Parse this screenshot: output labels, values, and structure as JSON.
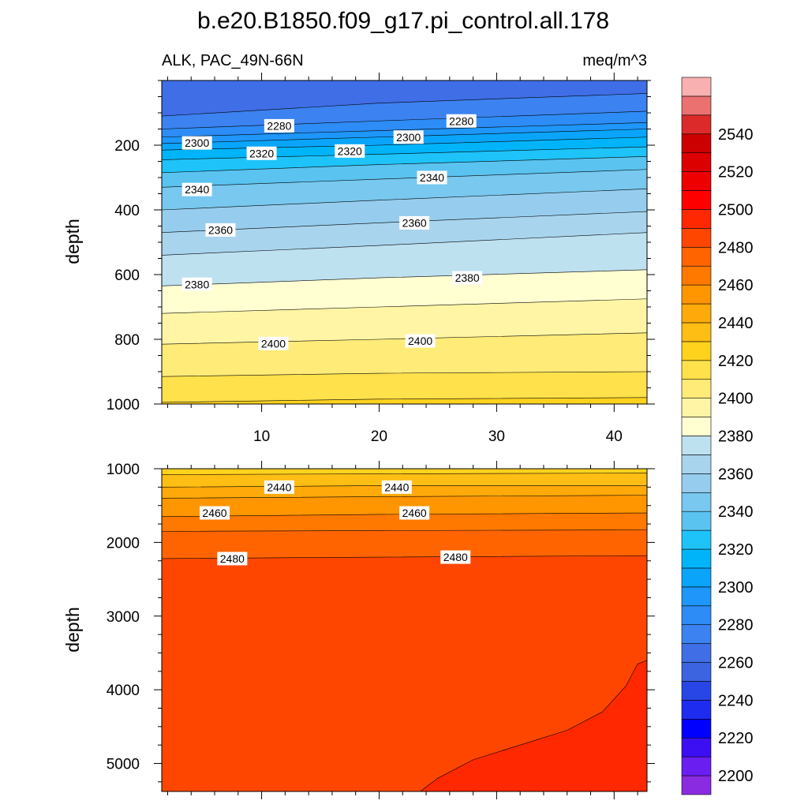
{
  "chart_data": {
    "type": "contour",
    "title": "b.e20.B1850.f09_g17.pi_control.all.178",
    "subtitle_left": "ALK, PAC_49N-66N",
    "subtitle_right": "meq/m^3",
    "ylabel": "depth",
    "xlim": [
      1.5,
      42.8
    ],
    "x_ticks": [
      10,
      20,
      30,
      40
    ],
    "panels": [
      {
        "name": "upper",
        "ylim": [
          0,
          1000
        ],
        "y_ticks": [
          200,
          400,
          600,
          800,
          1000
        ],
        "contour_depths": [
          {
            "level": 2270,
            "x": [
              1.5,
              20,
              42.8
            ],
            "depth": [
              110,
              70,
              40
            ]
          },
          {
            "level": 2280,
            "x": [
              1.5,
              20,
              42.8
            ],
            "depth": [
              150,
              125,
              95
            ]
          },
          {
            "level": 2290,
            "x": [
              1.5,
              20,
              42.8
            ],
            "depth": [
              175,
              155,
              130
            ]
          },
          {
            "level": 2300,
            "x": [
              1.5,
              20,
              42.8
            ],
            "depth": [
              195,
              175,
              150
            ]
          },
          {
            "level": 2310,
            "x": [
              1.5,
              20,
              42.8
            ],
            "depth": [
              215,
              200,
              175
            ]
          },
          {
            "level": 2320,
            "x": [
              1.5,
              20,
              42.8
            ],
            "depth": [
              245,
              228,
              205
            ]
          },
          {
            "level": 2330,
            "x": [
              1.5,
              20,
              42.8
            ],
            "depth": [
              285,
              260,
              235
            ]
          },
          {
            "level": 2340,
            "x": [
              1.5,
              20,
              42.8
            ],
            "depth": [
              330,
              305,
              275
            ]
          },
          {
            "level": 2350,
            "x": [
              1.5,
              20,
              42.8
            ],
            "depth": [
              400,
              370,
              335
            ]
          },
          {
            "level": 2360,
            "x": [
              1.5,
              20,
              42.8
            ],
            "depth": [
              470,
              440,
              405
            ]
          },
          {
            "level": 2370,
            "x": [
              1.5,
              20,
              42.8
            ],
            "depth": [
              540,
              510,
              470
            ]
          },
          {
            "level": 2380,
            "x": [
              1.5,
              20,
              42.8
            ],
            "depth": [
              635,
              610,
              585
            ]
          },
          {
            "level": 2390,
            "x": [
              1.5,
              20,
              42.8
            ],
            "depth": [
              720,
              700,
              675
            ]
          },
          {
            "level": 2400,
            "x": [
              1.5,
              20,
              42.8
            ],
            "depth": [
              815,
              800,
              780
            ]
          },
          {
            "level": 2410,
            "x": [
              1.5,
              20,
              42.8
            ],
            "depth": [
              915,
              905,
              900
            ]
          },
          {
            "level": 2420,
            "x": [
              1.5,
              20,
              42.8
            ],
            "depth": [
              995,
              985,
              980
            ]
          }
        ],
        "contour_labels": [
          {
            "text": "2280",
            "x": 11.5,
            "depth": 140
          },
          {
            "text": "2280",
            "x": 27.0,
            "depth": 125
          },
          {
            "text": "2300",
            "x": 4.5,
            "depth": 193
          },
          {
            "text": "2300",
            "x": 22.5,
            "depth": 175
          },
          {
            "text": "2320",
            "x": 10.0,
            "depth": 225
          },
          {
            "text": "2320",
            "x": 17.5,
            "depth": 218
          },
          {
            "text": "2340",
            "x": 4.5,
            "depth": 337
          },
          {
            "text": "2340",
            "x": 24.5,
            "depth": 300
          },
          {
            "text": "2360",
            "x": 6.5,
            "depth": 462
          },
          {
            "text": "2360",
            "x": 23.0,
            "depth": 440
          },
          {
            "text": "2380",
            "x": 4.5,
            "depth": 630
          },
          {
            "text": "2380",
            "x": 27.5,
            "depth": 610
          },
          {
            "text": "2400",
            "x": 11.0,
            "depth": 813
          },
          {
            "text": "2400",
            "x": 23.5,
            "depth": 805
          }
        ]
      },
      {
        "name": "lower",
        "ylim": [
          1000,
          5380
        ],
        "y_ticks": [
          1000,
          2000,
          3000,
          4000,
          5000
        ],
        "contour_depths": [
          {
            "level": 2430,
            "x": [
              1.5,
              20,
              42.8
            ],
            "depth": [
              1080,
              1070,
              1060
            ]
          },
          {
            "level": 2440,
            "x": [
              1.5,
              20,
              42.8
            ],
            "depth": [
              1250,
              1230,
              1230
            ]
          },
          {
            "level": 2450,
            "x": [
              1.5,
              20,
              42.8
            ],
            "depth": [
              1400,
              1380,
              1360
            ]
          },
          {
            "level": 2460,
            "x": [
              1.5,
              20,
              42.8
            ],
            "depth": [
              1650,
              1620,
              1600
            ]
          },
          {
            "level": 2470,
            "x": [
              1.5,
              20,
              42.8
            ],
            "depth": [
              1850,
              1840,
              1830
            ]
          },
          {
            "level": 2480,
            "x": [
              1.5,
              20,
              42.8
            ],
            "depth": [
              2220,
              2200,
              2180
            ]
          }
        ],
        "deep_region": {
          "level": 2490,
          "x": [
            23.5,
            25,
            28,
            32,
            36,
            39,
            41,
            42,
            42.8
          ],
          "depth": [
            5380,
            5200,
            4950,
            4750,
            4550,
            4300,
            3950,
            3650,
            3600
          ]
        },
        "contour_labels": [
          {
            "text": "2440",
            "x": 11.5,
            "depth": 1250
          },
          {
            "text": "2440",
            "x": 21.5,
            "depth": 1250
          },
          {
            "text": "2460",
            "x": 6.0,
            "depth": 1600
          },
          {
            "text": "2460",
            "x": 23.0,
            "depth": 1600
          },
          {
            "text": "2480",
            "x": 7.5,
            "depth": 2220
          },
          {
            "text": "2480",
            "x": 26.5,
            "depth": 2200
          }
        ]
      }
    ],
    "colorbar": {
      "levels": [
        2190,
        2200,
        2210,
        2220,
        2230,
        2240,
        2250,
        2260,
        2270,
        2280,
        2290,
        2300,
        2310,
        2320,
        2330,
        2340,
        2350,
        2360,
        2370,
        2380,
        2390,
        2400,
        2410,
        2420,
        2430,
        2440,
        2450,
        2460,
        2470,
        2480,
        2490,
        2500,
        2510,
        2520,
        2530,
        2540,
        2550,
        2560
      ],
      "colors": [
        "#8a2be2",
        "#6a1ff0",
        "#3b0ff2",
        "#0000ff",
        "#1e2cf0",
        "#2846e6",
        "#3c64e0",
        "#3f6ee6",
        "#3c82f0",
        "#2d8cf5",
        "#1e96fa",
        "#0aa5fa",
        "#00b4fa",
        "#1ec3fa",
        "#5ac3f0",
        "#78c8ef",
        "#96cdee",
        "#a8d4ee",
        "#bee1f0",
        "#ffffd2",
        "#fff5a5",
        "#ffeb78",
        "#ffe14b",
        "#ffd21e",
        "#ffbe14",
        "#ffaa0a",
        "#ff9600",
        "#ff7800",
        "#ff6400",
        "#ff4600",
        "#ff2800",
        "#ff0000",
        "#ee0000",
        "#dc0000",
        "#cc0000",
        "#dc2a2a",
        "#eb7070",
        "#f8b0b0"
      ],
      "tick_labels": [
        2200,
        2220,
        2240,
        2260,
        2280,
        2300,
        2320,
        2340,
        2360,
        2380,
        2400,
        2420,
        2440,
        2460,
        2480,
        2500,
        2520,
        2540
      ]
    }
  }
}
